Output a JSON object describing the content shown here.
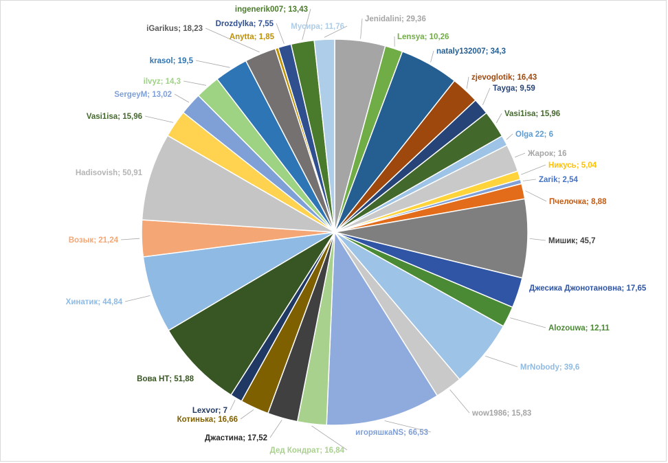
{
  "chart_data": {
    "type": "pie",
    "title": "",
    "start_angle_deg": -90,
    "slices": [
      {
        "name": "Jenidalini",
        "label": "Jenidalini;  29,36",
        "value": 29.36,
        "color": "#a5a5a5"
      },
      {
        "name": "Lensya",
        "label": "Lensya;  10,26",
        "value": 10.26,
        "color": "#70ad47"
      },
      {
        "name": "nataly132007",
        "label": "nataly132007;  34,3",
        "value": 34.3,
        "color": "#255e91"
      },
      {
        "name": "zjevoglotik",
        "label": "zjevoglotik;  16,43",
        "value": 16.43,
        "color": "#9e480e"
      },
      {
        "name": "Tayga",
        "label": "Tayga;  9,59",
        "value": 9.59,
        "color": "#264478"
      },
      {
        "name": "Vasi1isa",
        "label": "Vasi1isa;  15,96",
        "value": 15.96,
        "color": "#43682b"
      },
      {
        "name": "Olga 22",
        "label": "Olga 22;  6",
        "value": 6,
        "color": "#9dc3e6"
      },
      {
        "name": "Жарок",
        "label": "Жарок;  16",
        "value": 16,
        "color": "#c9c9c9"
      },
      {
        "name": "Никусь",
        "label": "Никусь;  5,04",
        "value": 5.04,
        "color": "#ffd43b"
      },
      {
        "name": "Zarik",
        "label": "Zarik;  2,54",
        "value": 2.54,
        "color": "#7f9fd7"
      },
      {
        "name": "Пчелочка",
        "label": "Пчелочка;  8,88",
        "value": 8.88,
        "color": "#e36c1a"
      },
      {
        "name": "Мишик",
        "label": "Мишик;  45,7",
        "value": 45.7,
        "color": "#7f7f7f"
      },
      {
        "name": "Джесика Джонотановна",
        "label": "Джесика Джонотановна;  17,65",
        "value": 17.65,
        "color": "#2f55a4"
      },
      {
        "name": "Alozouwa",
        "label": "Alozouwa;  12,11",
        "value": 12.11,
        "color": "#4a8a34"
      },
      {
        "name": "MrNobody",
        "label": "MrNobody;  39,6",
        "value": 39.6,
        "color": "#9dc3e6"
      },
      {
        "name": "wow1986",
        "label": "wow1986;  15,83",
        "value": 15.83,
        "color": "#c9c9c9"
      },
      {
        "name": "игоряшкаNS",
        "label": "игоряшкаNS;  66,53",
        "value": 66.53,
        "color": "#8faadc"
      },
      {
        "name": "Дед Кондрат",
        "label": "Дед Кондрат;  16,84",
        "value": 16.84,
        "color": "#a9d18e"
      },
      {
        "name": "Джастина",
        "label": "Джастина;  17,52",
        "value": 17.52,
        "color": "#404040"
      },
      {
        "name": "Котинька",
        "label": "Котинька;  16,66",
        "value": 16.66,
        "color": "#7f6000"
      },
      {
        "name": "Lexvor",
        "label": "Lexvor;  7",
        "value": 7,
        "color": "#1f3864"
      },
      {
        "name": "Вова НТ",
        "label": "Вова  НТ;  51,88",
        "value": 51.88,
        "color": "#375623"
      },
      {
        "name": "Хинатик",
        "label": "Хинатик;  44,84",
        "value": 44.84,
        "color": "#8fbae3"
      },
      {
        "name": "Возык",
        "label": "Возык;  21,24",
        "value": 21.24,
        "color": "#f4a675"
      },
      {
        "name": "Hadisovish",
        "label": "Hadisovish;  50,91",
        "value": 50.91,
        "color": "#c5c5c5"
      },
      {
        "name": "Vasi1isa",
        "label": "Vasi1isa;  15,96",
        "value": 15.96,
        "color": "#ffd34f"
      },
      {
        "name": "SergeyM",
        "label": "SergeyM;  13,02",
        "value": 13.02,
        "color": "#7f9fd7"
      },
      {
        "name": "ilvyz",
        "label": "ilvyz;  14,3",
        "value": 14.3,
        "color": "#9dd383"
      },
      {
        "name": "krasol",
        "label": "krasol;  19,5",
        "value": 19.5,
        "color": "#2e75b6"
      },
      {
        "name": "iGarikus",
        "label": "iGarikus;  18,23",
        "value": 18.23,
        "color": "#767171"
      },
      {
        "name": "Anytta",
        "label": "Anytta;  1,85",
        "value": 1.85,
        "color": "#bf9000"
      },
      {
        "name": "Drozdylka",
        "label": "Drozdylka;  7,55",
        "value": 7.55,
        "color": "#2f4f8f"
      },
      {
        "name": "ingenerik007",
        "label": "ingenerik007;  13,43",
        "value": 13.43,
        "color": "#4a7a2c"
      },
      {
        "name": "Мусира",
        "label": "Мусира;  11,76",
        "value": 11.76,
        "color": "#aecde9"
      }
    ],
    "label_colors": {
      "Jenidalini": "#a5a5a5",
      "Lensya": "#70ad47",
      "nataly132007": "#255e91",
      "zjevoglotik": "#9e480e",
      "Tayga": "#264478",
      "Vasi1isa": "#43682b",
      "Olga 22": "#5b9bd5",
      "Жарок": "#a5a5a5",
      "Никусь": "#ffc000",
      "Zarik": "#4472c4",
      "Пчелочка": "#c55a11",
      "Мишик": "#404040",
      "Джесика Джонотановна": "#2f55a4",
      "Alozouwa": "#4a8a34",
      "MrNobody": "#8fbae3",
      "wow1986": "#a5a5a5",
      "игоряшкаNS": "#7f9fd7",
      "Дед Кондрат": "#a9d18e",
      "Джастина": "#262626",
      "Котинька": "#7f6000",
      "Lexvor": "#1f3864",
      "Вова НТ": "#375623",
      "Хинатик": "#8fbae3",
      "Возык": "#f4a675",
      "Hadisovish": "#b4b4b4",
      "SergeyM": "#7f9fd7",
      "ilvyz": "#9dd383",
      "krasol": "#2e75b6",
      "iGarikus": "#595959",
      "Anytta": "#bf9000",
      "Drozdylka": "#2f4f8f",
      "ingenerik007": "#4a7a2c",
      "Мусира": "#aecde9"
    },
    "legend": "none"
  }
}
